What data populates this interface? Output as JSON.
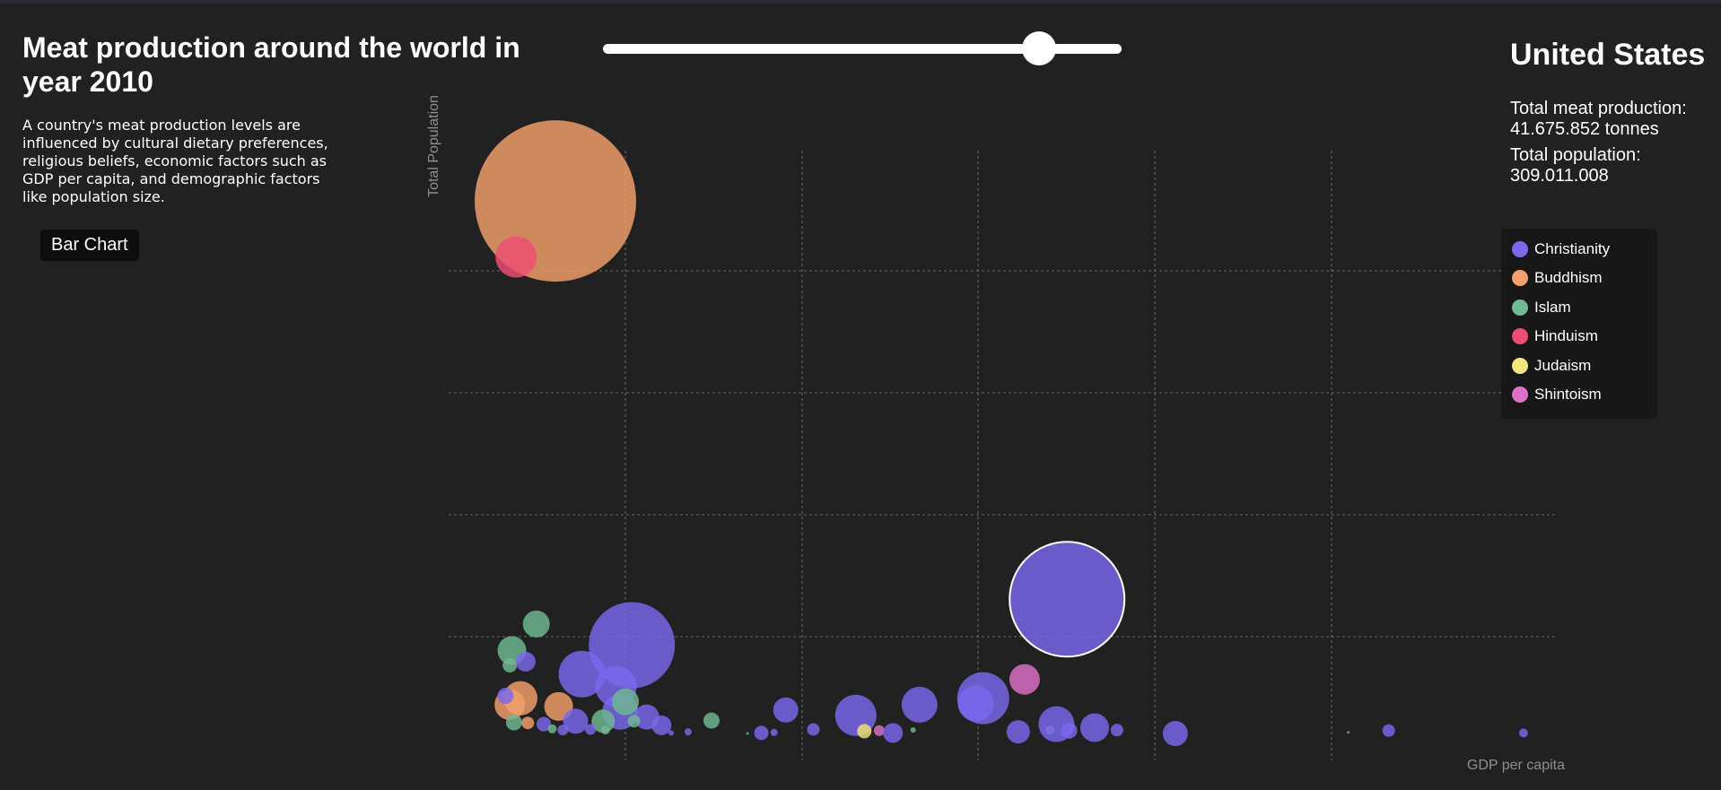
{
  "title_text": "Meat production around the world in year 2010",
  "description": "A country's meat production levels are influenced by cultural dietary preferences, religious beliefs, economic factors such as GDP per capita, and demographic factors like population size.",
  "bar_chart_button": "Bar Chart",
  "year_slider": {
    "value_fraction": 0.84
  },
  "selected_country": {
    "name": "United States",
    "production_label": "Total meat production:",
    "production_value": "41.675.852 tonnes",
    "population_label": "Total population:",
    "population_value": "309.011.008"
  },
  "legend": [
    {
      "label": "Christianity",
      "color": "#7b68ee"
    },
    {
      "label": "Buddhism",
      "color": "#f4a06c"
    },
    {
      "label": "Islam",
      "color": "#6fba92"
    },
    {
      "label": "Hinduism",
      "color": "#ee4d73"
    },
    {
      "label": "Judaism",
      "color": "#f2e37c"
    },
    {
      "label": "Shintoism",
      "color": "#de70c8"
    }
  ],
  "chart_data": {
    "type": "scatter",
    "xlabel": "GDP per capita",
    "ylabel": "Total Population",
    "xlim": [
      0,
      1
    ],
    "ylim": [
      0,
      1
    ],
    "grid": true,
    "point_size_encodes": "Total meat production",
    "points": [
      {
        "x": 0.071,
        "y": 0.91,
        "r": 90,
        "religion": "Buddhism"
      },
      {
        "x": 0.034,
        "y": 0.815,
        "r": 23,
        "religion": "Hinduism"
      },
      {
        "x": 0.553,
        "y": 0.234,
        "r": 64,
        "religion": "Christianity",
        "selected": true
      },
      {
        "x": 0.143,
        "y": 0.156,
        "r": 48,
        "religion": "Christianity"
      },
      {
        "x": 0.096,
        "y": 0.107,
        "r": 26,
        "religion": "Christianity"
      },
      {
        "x": 0.128,
        "y": 0.086,
        "r": 23,
        "religion": "Christianity"
      },
      {
        "x": 0.132,
        "y": 0.043,
        "r": 20,
        "religion": "Christianity"
      },
      {
        "x": 0.137,
        "y": 0.06,
        "r": 15,
        "religion": "Islam"
      },
      {
        "x": 0.053,
        "y": 0.192,
        "r": 15,
        "religion": "Islam"
      },
      {
        "x": 0.03,
        "y": 0.147,
        "r": 16,
        "religion": "Islam"
      },
      {
        "x": 0.028,
        "y": 0.122,
        "r": 8,
        "religion": "Islam"
      },
      {
        "x": 0.043,
        "y": 0.128,
        "r": 11,
        "religion": "Christianity"
      },
      {
        "x": 0.038,
        "y": 0.066,
        "r": 19,
        "religion": "Buddhism"
      },
      {
        "x": 0.028,
        "y": 0.055,
        "r": 17,
        "religion": "Buddhism"
      },
      {
        "x": 0.074,
        "y": 0.052,
        "r": 16,
        "religion": "Buddhism"
      },
      {
        "x": 0.024,
        "y": 0.07,
        "r": 9,
        "religion": "Christianity"
      },
      {
        "x": 0.09,
        "y": 0.027,
        "r": 14,
        "religion": "Christianity"
      },
      {
        "x": 0.116,
        "y": 0.027,
        "r": 13,
        "religion": "Islam"
      },
      {
        "x": 0.157,
        "y": 0.034,
        "r": 14,
        "religion": "Christianity"
      },
      {
        "x": 0.171,
        "y": 0.02,
        "r": 11,
        "religion": "Christianity"
      },
      {
        "x": 0.032,
        "y": 0.025,
        "r": 9,
        "religion": "Islam"
      },
      {
        "x": 0.045,
        "y": 0.024,
        "r": 7,
        "religion": "Buddhism"
      },
      {
        "x": 0.06,
        "y": 0.022,
        "r": 8,
        "religion": "Christianity"
      },
      {
        "x": 0.068,
        "y": 0.014,
        "r": 5,
        "religion": "Islam"
      },
      {
        "x": 0.078,
        "y": 0.012,
        "r": 6,
        "religion": "Christianity"
      },
      {
        "x": 0.104,
        "y": 0.013,
        "r": 6,
        "religion": "Christianity"
      },
      {
        "x": 0.118,
        "y": 0.012,
        "r": 5,
        "religion": "Islam"
      },
      {
        "x": 0.145,
        "y": 0.027,
        "r": 7,
        "religion": "Islam"
      },
      {
        "x": 0.218,
        "y": 0.028,
        "r": 9,
        "religion": "Islam"
      },
      {
        "x": 0.196,
        "y": 0.009,
        "r": 4,
        "religion": "Christianity"
      },
      {
        "x": 0.18,
        "y": 0.007,
        "r": 3,
        "religion": "Christianity"
      },
      {
        "x": 0.252,
        "y": 0.006,
        "r": 1.5,
        "religion": "Islam"
      },
      {
        "x": 0.265,
        "y": 0.007,
        "r": 8,
        "religion": "Christianity"
      },
      {
        "x": 0.277,
        "y": 0.008,
        "r": 4,
        "religion": "Christianity"
      },
      {
        "x": 0.288,
        "y": 0.046,
        "r": 14,
        "religion": "Christianity"
      },
      {
        "x": 0.314,
        "y": 0.013,
        "r": 7,
        "religion": "Christianity"
      },
      {
        "x": 0.354,
        "y": 0.037,
        "r": 23,
        "religion": "Christianity"
      },
      {
        "x": 0.362,
        "y": 0.01,
        "r": 8,
        "religion": "Judaism"
      },
      {
        "x": 0.376,
        "y": 0.011,
        "r": 6,
        "religion": "Shintoism"
      },
      {
        "x": 0.389,
        "y": 0.007,
        "r": 11,
        "religion": "Christianity"
      },
      {
        "x": 0.414,
        "y": 0.055,
        "r": 20,
        "religion": "Christianity"
      },
      {
        "x": 0.408,
        "y": 0.012,
        "r": 3,
        "religion": "Islam"
      },
      {
        "x": 0.467,
        "y": 0.057,
        "r": 20,
        "religion": "Christianity"
      },
      {
        "x": 0.474,
        "y": 0.066,
        "r": 29,
        "religion": "Christianity"
      },
      {
        "x": 0.513,
        "y": 0.098,
        "r": 17,
        "religion": "Shintoism"
      },
      {
        "x": 0.507,
        "y": 0.009,
        "r": 13,
        "religion": "Christianity"
      },
      {
        "x": 0.537,
        "y": 0.012,
        "r": 5,
        "religion": "Islam"
      },
      {
        "x": 0.543,
        "y": 0.022,
        "r": 20,
        "religion": "Christianity"
      },
      {
        "x": 0.555,
        "y": 0.011,
        "r": 9,
        "religion": "Christianity"
      },
      {
        "x": 0.579,
        "y": 0.016,
        "r": 16,
        "religion": "Christianity"
      },
      {
        "x": 0.6,
        "y": 0.012,
        "r": 7,
        "religion": "Christianity"
      },
      {
        "x": 0.655,
        "y": 0.006,
        "r": 14,
        "religion": "Christianity"
      },
      {
        "x": 0.818,
        "y": 0.008,
        "r": 1.5,
        "religion": "Islam"
      },
      {
        "x": 0.856,
        "y": 0.011,
        "r": 7,
        "religion": "Christianity"
      },
      {
        "x": 0.983,
        "y": 0.007,
        "r": 5,
        "religion": "Christianity"
      }
    ]
  }
}
